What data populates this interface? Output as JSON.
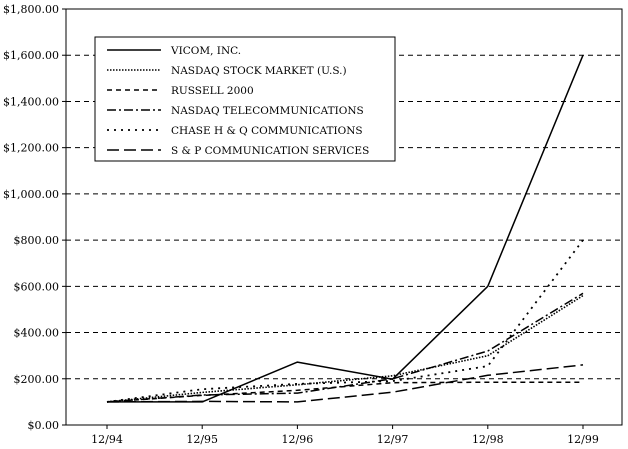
{
  "chart_data": {
    "type": "line",
    "title": "",
    "xlabel": "",
    "ylabel": "",
    "categories": [
      "12/94",
      "12/95",
      "12/96",
      "12/97",
      "12/98",
      "12/99"
    ],
    "y_tick_labels": [
      "$0.00",
      "$200.00",
      "$400.00",
      "$600.00",
      "$800.00",
      "$1,000.00",
      "$1,200.00",
      "$1,400.00",
      "$1,600.00",
      "$1,800.00"
    ],
    "ylim": [
      0,
      1800
    ],
    "grid": "horizontal dashed",
    "legend_position": "top-left",
    "series": [
      {
        "name": "VICOM, INC.",
        "style": "solid",
        "values": [
          100,
          100,
          272,
          198,
          600,
          1600
        ]
      },
      {
        "name": "NASDAQ STOCK MARKET (U.S.)",
        "style": "dotted",
        "values": [
          100,
          141,
          174,
          213,
          300,
          560
        ]
      },
      {
        "name": "RUSSELL 2000",
        "style": "dashed",
        "values": [
          100,
          128,
          150,
          183,
          185,
          185
        ]
      },
      {
        "name": "NASDAQ TELECOMMUNICATIONS",
        "style": "dash-dot",
        "values": [
          100,
          130,
          138,
          200,
          320,
          570
        ]
      },
      {
        "name": "CHASE H & Q COMMUNICATIONS",
        "style": "sparse-dot",
        "values": [
          100,
          155,
          178,
          190,
          255,
          800
        ]
      },
      {
        "name": "S & P COMMUNICATION SERVICES",
        "style": "long-dash",
        "values": [
          100,
          102,
          100,
          142,
          215,
          260
        ]
      }
    ]
  }
}
